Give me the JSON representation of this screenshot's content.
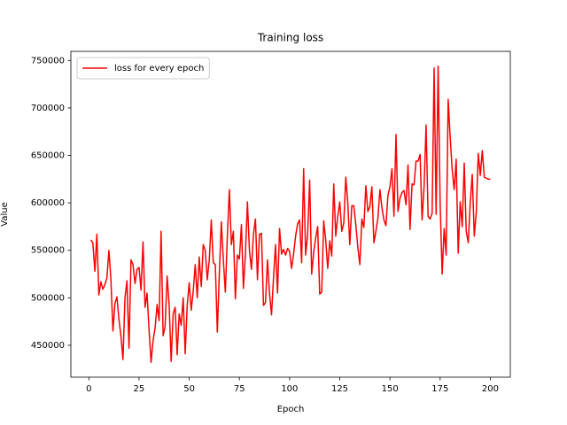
{
  "chart_data": {
    "type": "line",
    "title": "Training loss",
    "xlabel": "Epoch",
    "ylabel": "Value",
    "x": [
      1,
      2,
      3,
      4,
      5,
      6,
      7,
      8,
      9,
      10,
      11,
      12,
      13,
      14,
      15,
      16,
      17,
      18,
      19,
      20,
      21,
      22,
      23,
      24,
      25,
      26,
      27,
      28,
      29,
      30,
      31,
      32,
      33,
      34,
      35,
      36,
      37,
      38,
      39,
      40,
      41,
      42,
      43,
      44,
      45,
      46,
      47,
      48,
      49,
      50,
      51,
      52,
      53,
      54,
      55,
      56,
      57,
      58,
      59,
      60,
      61,
      62,
      63,
      64,
      65,
      66,
      67,
      68,
      69,
      70,
      71,
      72,
      73,
      74,
      75,
      76,
      77,
      78,
      79,
      80,
      81,
      82,
      83,
      84,
      85,
      86,
      87,
      88,
      89,
      90,
      91,
      92,
      93,
      94,
      95,
      96,
      97,
      98,
      99,
      100,
      101,
      102,
      103,
      104,
      105,
      106,
      107,
      108,
      109,
      110,
      111,
      112,
      113,
      114,
      115,
      116,
      117,
      118,
      119,
      120,
      121,
      122,
      123,
      124,
      125,
      126,
      127,
      128,
      129,
      130,
      131,
      132,
      133,
      134,
      135,
      136,
      137,
      138,
      139,
      140,
      141,
      142,
      143,
      144,
      145,
      146,
      147,
      148,
      149,
      150,
      151,
      152,
      153,
      154,
      155,
      156,
      157,
      158,
      159,
      160,
      161,
      162,
      163,
      164,
      165,
      166,
      167,
      168,
      169,
      170,
      171,
      172,
      173,
      174,
      175,
      176,
      177,
      178,
      179,
      180,
      181,
      182,
      183,
      184,
      185,
      186,
      187,
      188,
      189,
      190,
      191,
      192,
      193,
      194,
      195,
      196,
      197,
      198,
      199,
      200
    ],
    "series": [
      {
        "name": "loss for every epoch",
        "color": "#ff0000",
        "values": [
          561000,
          558000,
          528000,
          567000,
          503000,
          517000,
          509000,
          514000,
          521000,
          550000,
          519000,
          465000,
          494000,
          501000,
          477000,
          460000,
          435000,
          500000,
          518000,
          447000,
          540000,
          535000,
          515000,
          530000,
          532000,
          508000,
          559000,
          490000,
          505000,
          466000,
          432000,
          455000,
          468000,
          493000,
          476000,
          570000,
          460000,
          470000,
          523000,
          493000,
          433000,
          483000,
          490000,
          440000,
          483000,
          471000,
          500000,
          441000,
          492000,
          516000,
          487000,
          507000,
          535000,
          500000,
          543000,
          512000,
          556000,
          550000,
          519000,
          540000,
          582000,
          537000,
          535000,
          464000,
          525000,
          580000,
          540000,
          506000,
          565000,
          614000,
          556000,
          570000,
          499000,
          545000,
          541000,
          577000,
          510000,
          546000,
          601000,
          550000,
          530000,
          567000,
          583000,
          519000,
          567000,
          568000,
          492000,
          495000,
          540000,
          505000,
          482000,
          521000,
          556000,
          505000,
          573000,
          546000,
          551000,
          545000,
          552000,
          549000,
          531000,
          546000,
          565000,
          578000,
          582000,
          537000,
          636000,
          545000,
          567000,
          624000,
          525000,
          548000,
          563000,
          575000,
          504000,
          506000,
          581000,
          561000,
          531000,
          560000,
          544000,
          620000,
          565000,
          586000,
          601000,
          570000,
          579000,
          627000,
          600000,
          556000,
          597000,
          597000,
          577000,
          553000,
          535000,
          583000,
          574000,
          618000,
          591000,
          596000,
          617000,
          558000,
          570000,
          584000,
          614000,
          595000,
          582000,
          576000,
          608000,
          617000,
          636000,
          586000,
          672000,
          591000,
          605000,
          611000,
          613000,
          598000,
          640000,
          572000,
          620000,
          619000,
          644000,
          644000,
          651000,
          582000,
          617000,
          682000,
          586000,
          583000,
          589000,
          742000,
          588000,
          744000,
          600000,
          525000,
          573000,
          545000,
          709000,
          669000,
          635000,
          614000,
          646000,
          547000,
          601000,
          575000,
          642000,
          570000,
          558000,
          600000,
          630000,
          565000,
          590000,
          652000,
          629000,
          655000,
          627000,
          626000,
          625000,
          625000
        ]
      }
    ],
    "xlim": [
      -8.95,
      209.95
    ],
    "ylim": [
      416400,
      759600
    ],
    "xticks": [
      0,
      25,
      50,
      75,
      100,
      125,
      150,
      175,
      200
    ],
    "yticks": [
      450000,
      500000,
      550000,
      600000,
      650000,
      700000,
      750000
    ],
    "legend": "upper left"
  }
}
